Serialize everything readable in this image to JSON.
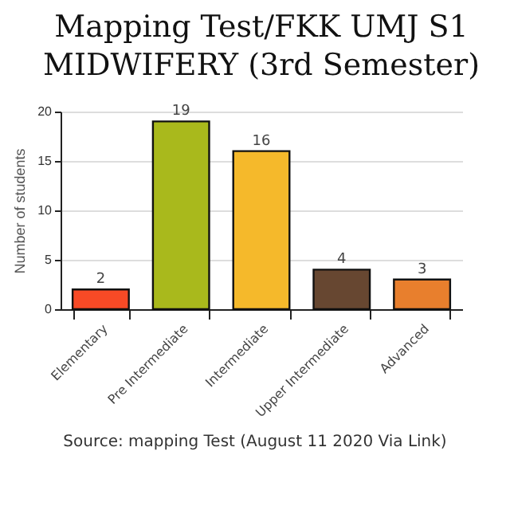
{
  "chart_data": {
    "type": "bar",
    "title": "Mapping Test/FKK UMJ S1 MIDWIFERY (3rd Semester)",
    "ylabel": "Number of students",
    "categories": [
      "Elementary",
      "Pre Intermediate",
      "Intermediate",
      "Upper Intermediate",
      "Advanced"
    ],
    "values": [
      2,
      19,
      16,
      4,
      3
    ],
    "colors": [
      "#f84a26",
      "#a9b91c",
      "#f5b92b",
      "#674731",
      "#e87f2d"
    ],
    "ylim": [
      0,
      20
    ],
    "yticks": [
      0,
      5,
      10,
      15,
      20
    ],
    "grid": "y",
    "data_labels": true,
    "annotations": [
      "Source: mapping Test (August 11 2020 Via Link)"
    ]
  }
}
